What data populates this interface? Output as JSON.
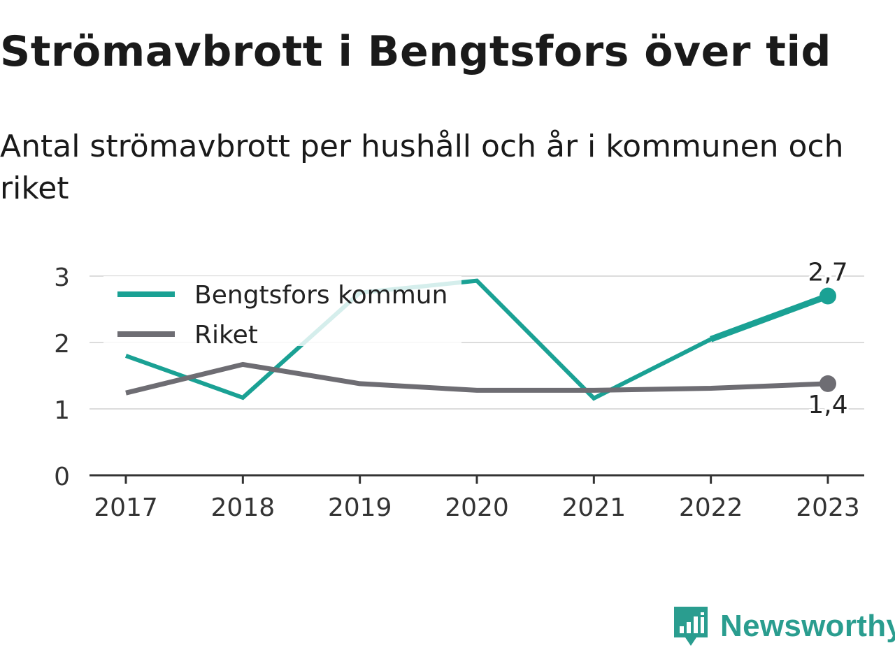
{
  "title": "Strömavbrott i Bengtsfors över tid",
  "subtitle": "Antal strömavbrott per hushåll och år i kommunen och riket",
  "brand": {
    "name": "Newsworthy",
    "logo_icon": "bar-chart-speech-bubble-icon",
    "color": "#2a9d8f"
  },
  "chart_data": {
    "type": "line",
    "x": [
      "2017",
      "2018",
      "2019",
      "2020",
      "2021",
      "2022",
      "2023"
    ],
    "ylim": [
      0,
      3
    ],
    "yticks": [
      "0",
      "1",
      "2",
      "3"
    ],
    "grid": true,
    "legend": "top-left",
    "series": [
      {
        "name": "Bengtsfors kommun",
        "color": "#1aa194",
        "values": [
          1.8,
          1.17,
          2.75,
          2.93,
          1.16,
          2.05,
          2.7
        ],
        "end_label": "2,7"
      },
      {
        "name": "Riket",
        "color": "#6e6d73",
        "values": [
          1.24,
          1.67,
          1.38,
          1.28,
          1.28,
          1.31,
          1.38
        ],
        "end_label": "1,4"
      }
    ]
  }
}
